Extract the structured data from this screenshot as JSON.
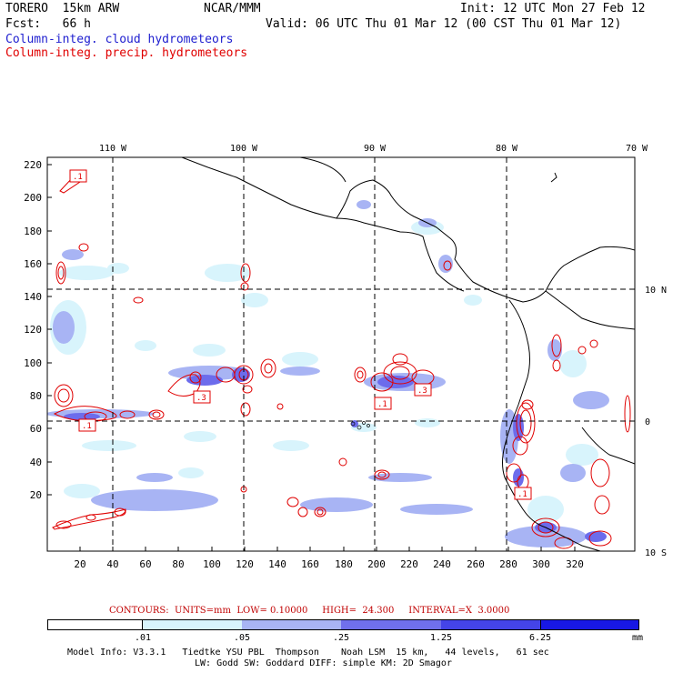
{
  "header": {
    "model": "TORERO  15km ARW",
    "org": "NCAR/MMM",
    "init": "Init: 12 UTC Mon 27 Feb 12",
    "fcst": "Fcst:   66 h",
    "valid": "Valid: 06 UTC Thu 01 Mar 12 (00 CST Thu 01 Mar 12)",
    "field_cloud": "Column-integ. cloud hydrometeors",
    "field_precip": "Column-integ. precip. hydrometeors"
  },
  "map": {
    "lon_labels": [
      "110 W",
      "100 W",
      "90 W",
      "80 W",
      "70 W"
    ],
    "lat_labels": [
      "10 N",
      "0",
      "10 S"
    ],
    "y_ticks": [
      "220",
      "200",
      "180",
      "160",
      "140",
      "120",
      "100",
      "80",
      "60",
      "40",
      "20"
    ],
    "x_ticks": [
      "20",
      "40",
      "60",
      "80",
      "100",
      "120",
      "140",
      "160",
      "180",
      "200",
      "220",
      "240",
      "260",
      "280",
      "300",
      "320"
    ],
    "contour_boxes": [
      ".1",
      ".1",
      ".3",
      ".1",
      ".3",
      ".1"
    ]
  },
  "contour_info": {
    "text": "CONTOURS:  UNITS=mm  LOW= 0.10000     HIGH=  24.300     INTERVAL=X  3.0000"
  },
  "colorbar": {
    "levels": [
      ".01",
      ".05",
      ".25",
      "1.25",
      "6.25"
    ],
    "units": "mm",
    "colors": [
      "#ffffff",
      "#d8f4fc",
      "#a8b4f4",
      "#7070ec",
      "#4444e8",
      "#1818e4"
    ]
  },
  "model_info": {
    "line1": "Model Info: V3.3.1   Tiedtke YSU PBL  Thompson    Noah LSM  15 km,   44 levels,   61 sec",
    "line2": "LW: Godd SW: Goddard DIFF: simple KM: 2D Smagor"
  }
}
